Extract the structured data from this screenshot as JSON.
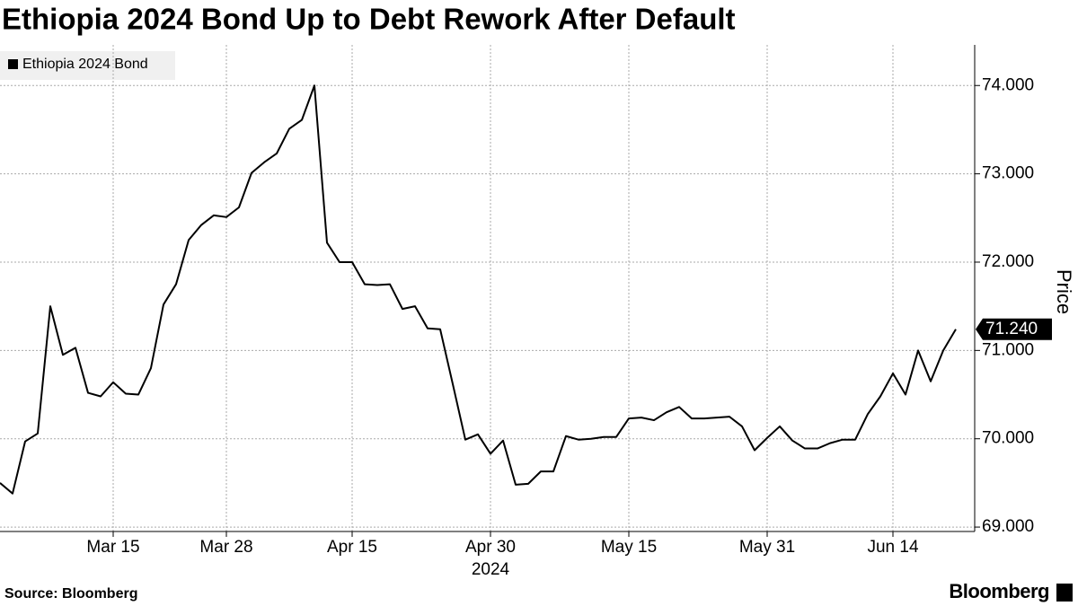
{
  "chart_data": {
    "type": "line",
    "title": "Ethiopia 2024 Bond Up to Debt Rework After Default",
    "y_label": "Price",
    "year_label": "2024",
    "source": "Source:  Bloomberg",
    "brand": "Bloomberg",
    "legend": "top-left",
    "grid": true,
    "categories": [
      null,
      null,
      null,
      null,
      null,
      null,
      null,
      null,
      null,
      "Mar 15",
      null,
      null,
      null,
      null,
      null,
      null,
      null,
      null,
      "Mar 28",
      null,
      null,
      null,
      null,
      null,
      null,
      null,
      null,
      null,
      "Apr 15",
      null,
      null,
      null,
      null,
      null,
      null,
      null,
      null,
      null,
      null,
      "Apr 30",
      null,
      null,
      null,
      null,
      null,
      null,
      null,
      null,
      null,
      null,
      "May 15",
      null,
      null,
      null,
      null,
      null,
      null,
      null,
      null,
      null,
      null,
      "May 31",
      null,
      null,
      null,
      null,
      null,
      null,
      null,
      null,
      null,
      "Jun 14",
      null,
      null,
      null,
      null,
      null
    ],
    "series": [
      {
        "name": "Ethiopia 2024 Bond",
        "color": "#000000",
        "values": [
          69.5,
          69.38,
          69.97,
          70.06,
          71.5,
          70.95,
          71.03,
          70.52,
          70.48,
          70.64,
          70.51,
          70.5,
          70.8,
          71.52,
          71.75,
          72.25,
          72.42,
          72.53,
          72.51,
          72.62,
          73.01,
          73.13,
          73.23,
          73.51,
          73.61,
          74.0,
          72.22,
          72.0,
          72.0,
          71.75,
          71.74,
          71.75,
          71.47,
          71.5,
          71.25,
          71.24,
          70.62,
          69.99,
          70.05,
          69.83,
          69.98,
          69.48,
          69.49,
          69.63,
          69.63,
          70.03,
          69.99,
          70.0,
          70.02,
          70.02,
          70.23,
          70.24,
          70.21,
          70.3,
          70.36,
          70.23,
          70.23,
          70.24,
          70.25,
          70.14,
          69.87,
          70.01,
          70.14,
          69.98,
          69.89,
          69.89,
          69.95,
          69.99,
          69.99,
          70.28,
          70.48,
          70.74,
          70.5,
          71.0,
          70.65,
          71.0,
          71.24
        ],
        "value_labels": [
          null,
          null,
          null,
          null,
          null,
          null,
          null,
          null,
          null,
          null,
          null,
          null,
          null,
          null,
          null,
          null,
          null,
          null,
          null,
          null,
          null,
          null,
          null,
          null,
          null,
          null,
          null,
          null,
          null,
          null,
          null,
          null,
          null,
          null,
          null,
          null,
          null,
          null,
          null,
          null,
          null,
          null,
          null,
          null,
          null,
          null,
          null,
          null,
          null,
          null,
          null,
          null,
          null,
          null,
          null,
          null,
          null,
          null,
          null,
          null,
          null,
          null,
          null,
          null,
          null,
          null,
          null,
          null,
          null,
          null,
          null,
          null,
          null,
          null,
          null,
          null,
          "71.240"
        ]
      }
    ],
    "ylim": [
      68.95,
      74.46
    ],
    "yticks": [
      {
        "value": 69,
        "label": "69.000"
      },
      {
        "value": 70,
        "label": "70.000"
      },
      {
        "value": 71,
        "label": "71.000"
      },
      {
        "value": 72,
        "label": "72.000"
      },
      {
        "value": 73,
        "label": "73.000"
      },
      {
        "value": 74,
        "label": "74.000"
      }
    ]
  }
}
